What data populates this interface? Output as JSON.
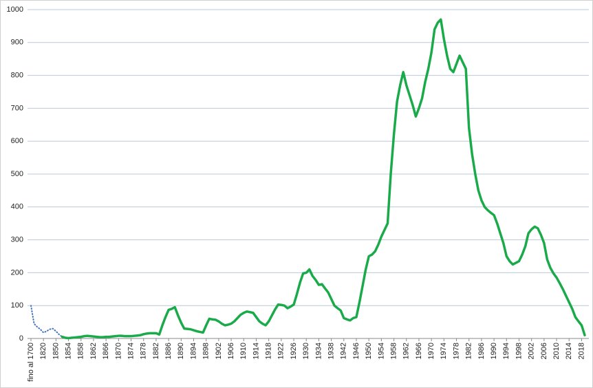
{
  "chart_data": {
    "type": "line",
    "categories": [
      "fino al 1700",
      null,
      null,
      null,
      "1820",
      null,
      null,
      null,
      "1850",
      null,
      null,
      null,
      "1854",
      null,
      null,
      null,
      "1858",
      null,
      null,
      null,
      "1862",
      null,
      null,
      null,
      "1866",
      null,
      null,
      null,
      "1870",
      null,
      null,
      null,
      "1874",
      null,
      null,
      null,
      "1878",
      null,
      null,
      null,
      "1882",
      null,
      null,
      null,
      "1886",
      null,
      null,
      null,
      "1890",
      null,
      null,
      null,
      "1894",
      null,
      null,
      null,
      "1898",
      null,
      null,
      null,
      "1902",
      null,
      null,
      null,
      "1906",
      null,
      null,
      null,
      "1910",
      null,
      null,
      null,
      "1914",
      null,
      null,
      null,
      "1918",
      null,
      null,
      null,
      "1922",
      null,
      null,
      null,
      "1926",
      null,
      null,
      null,
      "1930",
      null,
      null,
      null,
      "1934",
      null,
      null,
      null,
      "1938",
      null,
      null,
      null,
      "1942",
      null,
      null,
      null,
      "1946",
      null,
      null,
      null,
      "1950",
      null,
      null,
      null,
      "1954",
      null,
      null,
      null,
      "1958",
      null,
      null,
      null,
      "1962",
      null,
      null,
      null,
      "1966",
      null,
      null,
      null,
      "1970",
      null,
      null,
      null,
      "1974",
      null,
      null,
      null,
      "1978",
      null,
      null,
      null,
      "1982",
      null,
      null,
      null,
      "1986",
      null,
      null,
      null,
      "1990",
      null,
      null,
      null,
      "1994",
      null,
      null,
      null,
      "1998",
      null,
      null,
      null,
      "2002",
      null,
      null,
      null,
      "2006",
      null,
      null,
      null,
      "2010",
      null,
      null,
      null,
      "2014",
      null,
      null,
      null,
      "2018",
      null
    ],
    "series": [
      {
        "color": "#4472c4",
        "style": "dotted",
        "values": [
          100,
          45,
          35,
          28,
          18,
          22,
          28,
          30,
          22,
          12,
          5,
          null,
          null,
          null,
          null,
          null,
          null,
          null,
          null,
          null,
          null,
          null,
          null,
          null,
          null,
          null,
          null,
          null,
          null,
          null,
          null,
          null,
          null,
          null,
          null,
          null,
          null,
          null,
          null,
          null,
          null,
          null,
          null,
          null,
          null,
          null,
          null,
          null,
          null,
          null,
          null,
          null,
          null,
          null,
          null,
          null,
          null,
          null,
          null,
          null,
          null,
          null,
          null,
          null,
          null,
          null,
          null,
          null,
          null,
          null,
          null,
          null,
          null,
          null,
          null,
          null,
          null,
          null,
          null,
          null,
          null,
          null,
          null,
          null,
          null,
          null,
          null,
          null,
          null,
          null,
          null,
          null,
          null,
          null,
          null,
          null,
          null,
          null,
          null,
          null,
          null,
          null,
          null,
          null,
          null,
          null,
          null,
          null,
          null,
          null,
          null,
          null,
          null,
          null,
          null,
          null,
          null,
          null,
          null,
          null,
          null,
          null,
          null,
          null,
          null,
          null,
          null,
          null,
          null,
          null,
          null,
          null,
          null,
          null,
          null,
          null,
          null,
          null,
          null,
          null,
          null,
          null,
          null,
          null,
          null,
          null,
          null,
          null,
          null,
          null,
          null,
          null,
          null,
          null,
          null,
          null,
          null,
          null,
          null,
          null,
          null,
          null,
          null,
          null,
          null,
          null,
          null,
          null,
          null,
          null,
          null,
          null,
          null,
          null,
          null,
          null,
          null,
          null
        ]
      },
      {
        "color": "#1aaa4a",
        "style": "solid",
        "values": [
          null,
          null,
          null,
          null,
          null,
          null,
          null,
          null,
          null,
          null,
          5,
          2,
          1,
          2,
          3,
          4,
          5,
          7,
          8,
          7,
          6,
          5,
          4,
          4,
          5,
          5,
          6,
          7,
          8,
          8,
          7,
          7,
          7,
          8,
          9,
          10,
          13,
          15,
          16,
          16,
          16,
          12,
          40,
          65,
          87,
          90,
          95,
          70,
          48,
          30,
          29,
          28,
          25,
          22,
          20,
          18,
          40,
          60,
          58,
          57,
          52,
          45,
          40,
          42,
          45,
          52,
          62,
          72,
          78,
          82,
          80,
          78,
          65,
          52,
          45,
          40,
          52,
          70,
          88,
          103,
          102,
          100,
          92,
          97,
          103,
          135,
          170,
          198,
          200,
          210,
          190,
          178,
          163,
          165,
          152,
          140,
          120,
          100,
          92,
          85,
          62,
          58,
          55,
          62,
          65,
          110,
          160,
          210,
          250,
          255,
          265,
          285,
          310,
          330,
          350,
          500,
          620,
          720,
          770,
          810,
          770,
          740,
          710,
          675,
          700,
          730,
          780,
          820,
          870,
          940,
          960,
          970,
          910,
          860,
          820,
          810,
          835,
          860,
          840,
          820,
          640,
          560,
          500,
          450,
          420,
          400,
          390,
          382,
          375,
          350,
          320,
          290,
          250,
          235,
          225,
          230,
          235,
          255,
          280,
          320,
          332,
          340,
          335,
          315,
          290,
          240,
          215,
          198,
          185,
          168,
          150,
          130,
          110,
          90,
          65,
          52,
          40,
          10
        ]
      }
    ],
    "ylim": [
      0,
      1000
    ],
    "yticks": [
      0,
      100,
      200,
      300,
      400,
      500,
      600,
      700,
      800,
      900,
      1000
    ],
    "grid": true
  }
}
